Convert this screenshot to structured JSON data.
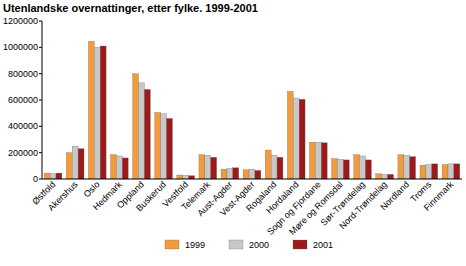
{
  "chart_data": {
    "type": "bar",
    "title": "Utenlandske overnattinger, etter fylke. 1999-2001",
    "categories": [
      "Østfold",
      "Akershus",
      "Oslo",
      "Hedmark",
      "Oppland",
      "Buskerud",
      "Vestfold",
      "Telemark",
      "Aust-Agder",
      "Vest-Agder",
      "Rogaland",
      "Hordaland",
      "Sogn og Fjordane",
      "Møre og Romsdal",
      "Sør-Trøndelag",
      "Nord-Trøndelag",
      "Nordland",
      "Troms",
      "Finnmark"
    ],
    "series": [
      {
        "name": "1999",
        "color": "#f39a3c",
        "values": [
          45000,
          200000,
          1045000,
          185000,
          800000,
          505000,
          30000,
          185000,
          75000,
          70000,
          220000,
          665000,
          280000,
          155000,
          185000,
          40000,
          185000,
          105000,
          110000
        ]
      },
      {
        "name": "2000",
        "color": "#c8c8c8",
        "values": [
          40000,
          250000,
          1000000,
          175000,
          730000,
          495000,
          28000,
          180000,
          80000,
          75000,
          180000,
          615000,
          280000,
          150000,
          175000,
          35000,
          180000,
          110000,
          115000
        ]
      },
      {
        "name": "2001",
        "color": "#9b1b1b",
        "values": [
          45000,
          230000,
          1010000,
          160000,
          680000,
          460000,
          25000,
          165000,
          85000,
          65000,
          165000,
          605000,
          275000,
          145000,
          145000,
          35000,
          170000,
          115000,
          115000
        ]
      }
    ],
    "ylim": [
      0,
      1200000
    ],
    "yticks": [
      0,
      200000,
      400000,
      600000,
      800000,
      1000000,
      1200000
    ],
    "grid": false,
    "legend": "bottom"
  }
}
